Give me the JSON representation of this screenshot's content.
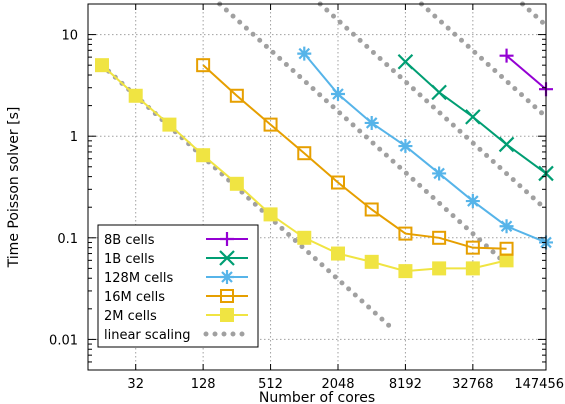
{
  "chart_data": {
    "type": "line",
    "xscale": "log2",
    "yscale": "log10",
    "xlabel": "Number of cores",
    "ylabel": "Time Poisson solver [s]",
    "xlim": [
      12,
      147456
    ],
    "ylim": [
      0.005,
      20
    ],
    "x_ticks": [
      32,
      128,
      512,
      2048,
      8192,
      32768,
      147456
    ],
    "x_tick_labels": [
      "32",
      "128",
      "512",
      "2048",
      "8192",
      "32768",
      "147456"
    ],
    "y_ticks": [
      0.01,
      0.1,
      1,
      10
    ],
    "y_tick_labels": [
      "0.01",
      "0.1",
      "1",
      "10"
    ],
    "grid": true,
    "legend_position": "bottom-left",
    "series": [
      {
        "name": "8B cells",
        "color": "#9400d3",
        "marker": "plus",
        "x": [
          65536,
          147456
        ],
        "y": [
          6.2,
          2.9
        ]
      },
      {
        "name": "1B cells",
        "color": "#009e73",
        "marker": "x",
        "x": [
          8192,
          16384,
          32768,
          65536,
          147456
        ],
        "y": [
          5.4,
          2.7,
          1.55,
          0.83,
          0.43
        ]
      },
      {
        "name": "128M cells",
        "color": "#56b4e9",
        "marker": "star",
        "x": [
          1024,
          2048,
          4096,
          8192,
          16384,
          32768,
          65536,
          147456
        ],
        "y": [
          6.5,
          2.6,
          1.35,
          0.8,
          0.43,
          0.23,
          0.13,
          0.09
        ]
      },
      {
        "name": "16M cells",
        "color": "#e69f00",
        "marker": "open-square",
        "x": [
          128,
          256,
          512,
          1024,
          2048,
          4096,
          8192,
          16384,
          32768,
          65536
        ],
        "y": [
          5.0,
          2.5,
          1.3,
          0.68,
          0.35,
          0.19,
          0.11,
          0.1,
          0.08,
          0.078
        ]
      },
      {
        "name": "2M cells",
        "color": "#f0e442",
        "marker": "filled-square",
        "x": [
          16,
          32,
          64,
          128,
          256,
          512,
          1024,
          2048,
          4096,
          8192,
          16384,
          32768,
          65536
        ],
        "y": [
          5.0,
          2.5,
          1.3,
          0.65,
          0.34,
          0.17,
          0.1,
          0.07,
          0.058,
          0.047,
          0.05,
          0.05,
          0.06
        ]
      },
      {
        "name": "linear scaling",
        "color": "#a0a0a0",
        "marker": "dotted-line",
        "lines": [
          {
            "x": [
              16,
              5800
            ],
            "y": [
              5.0,
              0.0138
            ]
          },
          {
            "x": [
              180,
              65536
            ],
            "y": [
              20,
              0.055
            ]
          },
          {
            "x": [
              1420,
              147456
            ],
            "y": [
              20,
              0.19
            ]
          },
          {
            "x": [
              11400,
              147456
            ],
            "y": [
              20,
              1.55
            ]
          },
          {
            "x": [
              91000,
              147456
            ],
            "y": [
              20,
              12.3
            ]
          }
        ]
      }
    ]
  }
}
